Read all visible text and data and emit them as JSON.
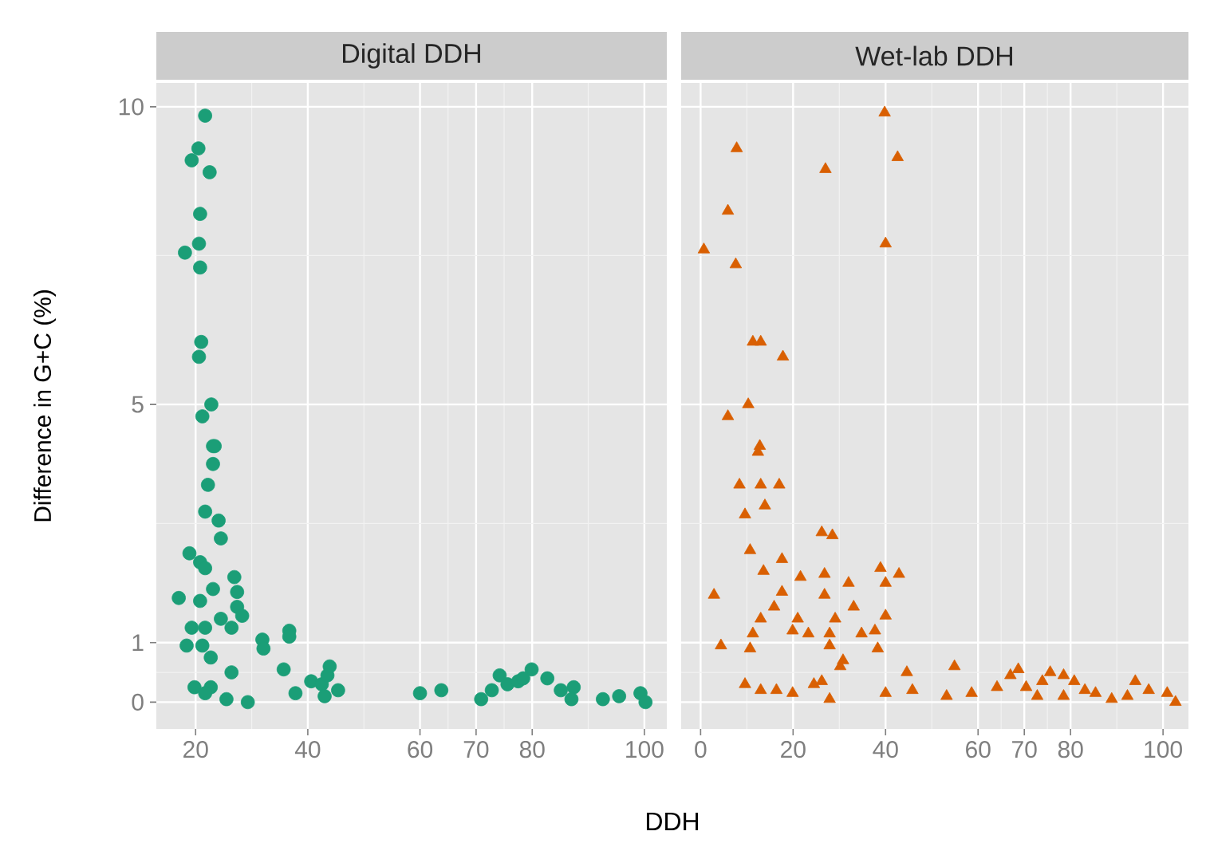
{
  "chart_data": [
    {
      "type": "scatter",
      "title": "Digital DDH",
      "xlabel": "DDH",
      "ylabel": "Difference in G+C (%)",
      "color": "#1b9e77",
      "marker": "circle",
      "grid": true,
      "xlim": [
        13,
        104
      ],
      "ylim": [
        -0.45,
        10.4
      ],
      "xticks": [
        20,
        40,
        60,
        70,
        80,
        100
      ],
      "yticks": [
        0,
        1,
        5,
        10
      ],
      "x": [
        21.7,
        20.5,
        19.3,
        22.5,
        20.8,
        20.6,
        18.1,
        20.8,
        21,
        20.6,
        22.8,
        21.2,
        23.4,
        23.1,
        23.1,
        22.2,
        21.7,
        24.1,
        24.5,
        18.9,
        20.8,
        21.7,
        26.9,
        17,
        20.8,
        23.1,
        27.4,
        27.4,
        28.3,
        24.5,
        19.3,
        21.7,
        26.4,
        18.4,
        21.2,
        22.7,
        31.9,
        32.1,
        36.7,
        36.7,
        35.7,
        26.4,
        19.8,
        22.7,
        21.7,
        25.5,
        29.3,
        37.8,
        40.6,
        42.5,
        43.9,
        43.5,
        45.4,
        43,
        60,
        63.8,
        70.9,
        72.8,
        74.2,
        75.6,
        77.5,
        79.9,
        78.4,
        82.7,
        85.1,
        87.4,
        87,
        92.6,
        95.5,
        99.3,
        100.2
      ],
      "values": [
        9.85,
        9.3,
        9.1,
        8.9,
        8.2,
        7.7,
        7.55,
        7.3,
        6.05,
        5.8,
        5.0,
        4.8,
        4.3,
        4.3,
        4.0,
        3.65,
        3.2,
        3.05,
        2.75,
        2.5,
        2.35,
        2.25,
        2.1,
        1.75,
        1.7,
        1.9,
        1.85,
        1.6,
        1.45,
        1.4,
        1.25,
        1.25,
        1.25,
        0.95,
        0.95,
        0.75,
        1.05,
        0.9,
        1.2,
        1.1,
        0.55,
        0.5,
        0.25,
        0.25,
        0.15,
        0.05,
        0.0,
        0.15,
        0.35,
        0.3,
        0.6,
        0.45,
        0.2,
        0.1,
        0.15,
        0.2,
        0.05,
        0.2,
        0.45,
        0.3,
        0.35,
        0.55,
        0.4,
        0.4,
        0.2,
        0.25,
        0.05,
        0.05,
        0.1,
        0.15,
        0.0
      ]
    },
    {
      "type": "scatter",
      "title": "Wet-lab DDH",
      "color": "#d95f02",
      "marker": "triangle",
      "grid": true,
      "tick_labels": "x",
      "xlim": [
        -4.2,
        105.5
      ],
      "ylim": [
        -0.45,
        10.4
      ],
      "xticks": [
        0,
        20,
        40,
        60,
        70,
        80,
        100
      ],
      "yticks": [
        0,
        1,
        5,
        10
      ],
      "x": [
        39.8,
        7.8,
        42.6,
        27,
        5.9,
        0.7,
        40,
        7.6,
        11.3,
        13,
        17.8,
        10.3,
        5.9,
        12.8,
        12.4,
        8.4,
        13,
        17,
        9.6,
        13.9,
        26.2,
        28.5,
        10.7,
        17.6,
        13.6,
        21.6,
        26.8,
        32,
        38.9,
        42.9,
        40,
        2.9,
        17.6,
        26.8,
        15.9,
        33.1,
        40,
        13,
        21,
        29.1,
        19.9,
        23.3,
        11.3,
        27.9,
        34.8,
        37.7,
        4.4,
        10.7,
        27.9,
        38.3,
        30.8,
        30.2,
        54.9,
        44.6,
        9.6,
        13,
        16.4,
        19.9,
        24.5,
        26.2,
        27.9,
        40,
        45.8,
        53.2,
        58.6,
        64.1,
        67,
        68.7,
        70.4,
        73.9,
        75.6,
        78.5,
        80.8,
        83.1,
        85.4,
        72.8,
        78.5,
        88.9,
        94,
        96.9,
        100.9,
        102.7,
        92.3
      ],
      "values": [
        9.9,
        9.3,
        9.15,
        8.95,
        8.25,
        7.6,
        7.7,
        7.35,
        6.05,
        6.05,
        5.8,
        5.0,
        4.8,
        4.3,
        4.2,
        3.65,
        3.65,
        3.65,
        3.15,
        3.3,
        2.85,
        2.8,
        2.55,
        2.4,
        2.2,
        2.1,
        2.15,
        2.0,
        2.25,
        2.15,
        2.0,
        1.8,
        1.85,
        1.8,
        1.6,
        1.6,
        1.45,
        1.4,
        1.4,
        1.4,
        1.2,
        1.15,
        1.15,
        1.15,
        1.15,
        1.2,
        0.95,
        0.9,
        0.95,
        0.9,
        0.7,
        0.6,
        0.6,
        0.5,
        0.3,
        0.2,
        0.2,
        0.15,
        0.3,
        0.35,
        0.05,
        0.15,
        0.2,
        0.1,
        0.15,
        0.25,
        0.45,
        0.55,
        0.25,
        0.35,
        0.5,
        0.45,
        0.35,
        0.2,
        0.15,
        0.1,
        0.1,
        0.05,
        0.35,
        0.2,
        0.15,
        0.0,
        0.1
      ]
    }
  ]
}
